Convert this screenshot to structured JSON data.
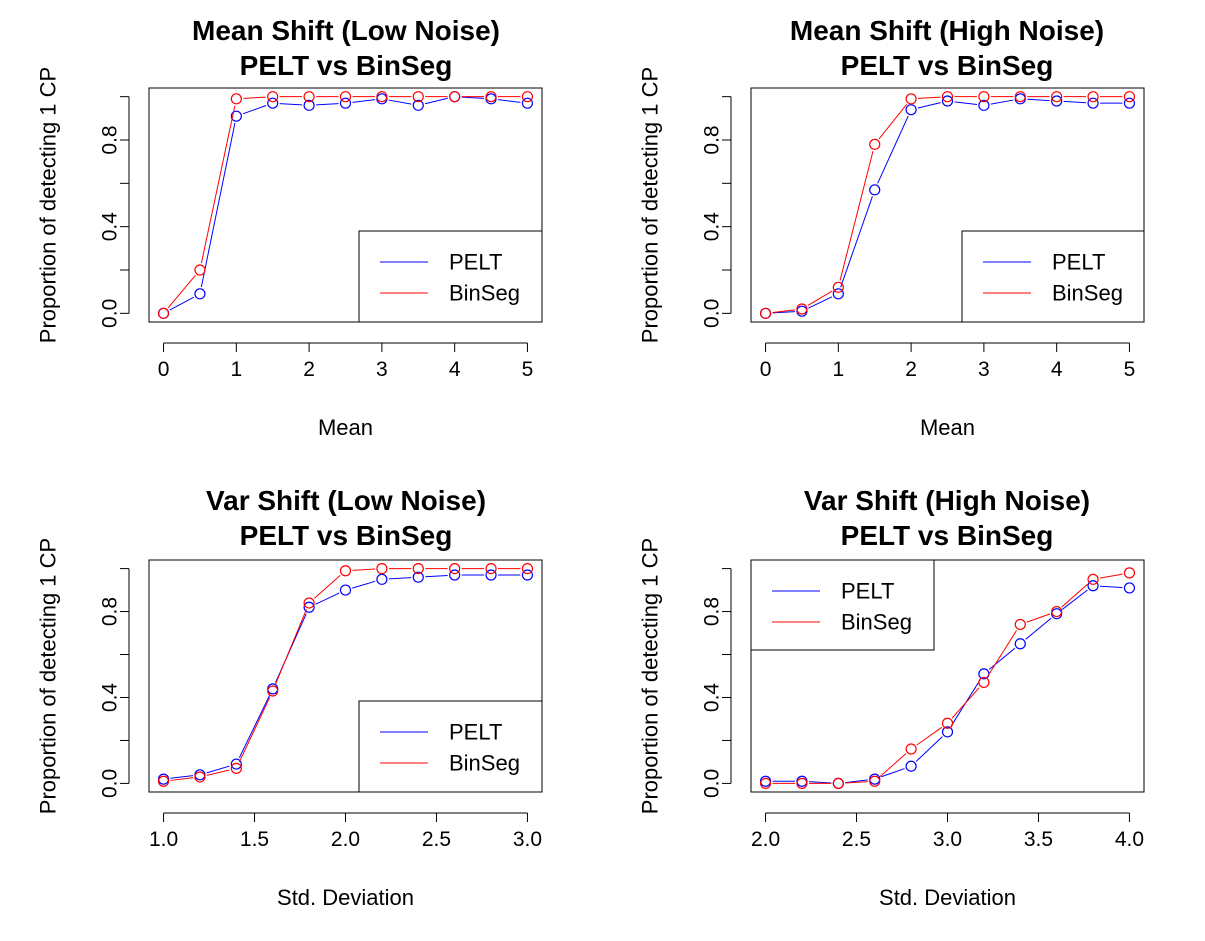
{
  "colors": {
    "PELT": "#0000ff",
    "BinSeg": "#ff0000",
    "axis": "#000000",
    "background": "#ffffff"
  },
  "chart_data": [
    {
      "type": "line",
      "title": "Mean Shift (Low Noise)",
      "subtitle": "PELT vs BinSeg",
      "xlabel": "Mean",
      "ylabel": "Proportion of detecting 1 CP",
      "xlim": [
        0,
        5
      ],
      "ylim": [
        0,
        1
      ],
      "xticks": [
        0,
        1,
        2,
        3,
        4,
        5
      ],
      "xtick_labels": [
        "0",
        "1",
        "2",
        "3",
        "4",
        "5"
      ],
      "yticks": [
        0,
        0.2,
        0.4,
        0.6,
        0.8,
        1.0
      ],
      "ytick_labels": [
        "0.0",
        "",
        "0.4",
        "",
        "0.8",
        ""
      ],
      "legend_position": "bottom-right",
      "grid": false,
      "x": [
        0,
        0.5,
        1,
        1.5,
        2,
        2.5,
        3,
        3.5,
        4,
        4.5,
        5
      ],
      "series": [
        {
          "name": "PELT",
          "values": [
            0.0,
            0.09,
            0.91,
            0.97,
            0.96,
            0.97,
            0.99,
            0.96,
            1.0,
            0.99,
            0.97
          ]
        },
        {
          "name": "BinSeg",
          "values": [
            0.0,
            0.2,
            0.99,
            1.0,
            1.0,
            1.0,
            1.0,
            1.0,
            1.0,
            1.0,
            1.0
          ]
        }
      ]
    },
    {
      "type": "line",
      "title": "Mean Shift (High Noise)",
      "subtitle": "PELT vs BinSeg",
      "xlabel": "Mean",
      "ylabel": "Proportion of detecting 1 CP",
      "xlim": [
        0,
        5
      ],
      "ylim": [
        0,
        1
      ],
      "xticks": [
        0,
        1,
        2,
        3,
        4,
        5
      ],
      "xtick_labels": [
        "0",
        "1",
        "2",
        "3",
        "4",
        "5"
      ],
      "yticks": [
        0,
        0.2,
        0.4,
        0.6,
        0.8,
        1.0
      ],
      "ytick_labels": [
        "0.0",
        "",
        "0.4",
        "",
        "0.8",
        ""
      ],
      "legend_position": "bottom-right",
      "grid": false,
      "x": [
        0,
        0.5,
        1,
        1.5,
        2,
        2.5,
        3,
        3.5,
        4,
        4.5,
        5
      ],
      "series": [
        {
          "name": "PELT",
          "values": [
            0.0,
            0.01,
            0.09,
            0.57,
            0.94,
            0.98,
            0.96,
            0.99,
            0.98,
            0.97,
            0.97
          ]
        },
        {
          "name": "BinSeg",
          "values": [
            0.0,
            0.02,
            0.12,
            0.78,
            0.99,
            1.0,
            1.0,
            1.0,
            1.0,
            1.0,
            1.0
          ]
        }
      ]
    },
    {
      "type": "line",
      "title": "Var Shift (Low Noise)",
      "subtitle": "PELT vs BinSeg",
      "xlabel": "Std. Deviation",
      "ylabel": "Proportion of detecting 1 CP",
      "xlim": [
        1.0,
        3.0
      ],
      "ylim": [
        0,
        1
      ],
      "xticks": [
        1.0,
        1.5,
        2.0,
        2.5,
        3.0
      ],
      "xtick_labels": [
        "1.0",
        "1.5",
        "2.0",
        "2.5",
        "3.0"
      ],
      "yticks": [
        0,
        0.2,
        0.4,
        0.6,
        0.8,
        1.0
      ],
      "ytick_labels": [
        "0.0",
        "",
        "0.4",
        "",
        "0.8",
        ""
      ],
      "legend_position": "bottom-right",
      "grid": false,
      "x": [
        1.0,
        1.2,
        1.4,
        1.6,
        1.8,
        2.0,
        2.2,
        2.4,
        2.6,
        2.8,
        3.0
      ],
      "series": [
        {
          "name": "PELT",
          "values": [
            0.02,
            0.04,
            0.09,
            0.44,
            0.82,
            0.9,
            0.95,
            0.96,
            0.97,
            0.97,
            0.97
          ]
        },
        {
          "name": "BinSeg",
          "values": [
            0.01,
            0.03,
            0.07,
            0.43,
            0.84,
            0.99,
            1.0,
            1.0,
            1.0,
            1.0,
            1.0
          ]
        }
      ]
    },
    {
      "type": "line",
      "title": "Var Shift (High Noise)",
      "subtitle": "PELT vs BinSeg",
      "xlabel": "Std. Deviation",
      "ylabel": "Proportion of detecting 1 CP",
      "xlim": [
        2.0,
        4.0
      ],
      "ylim": [
        0,
        1
      ],
      "xticks": [
        2.0,
        2.5,
        3.0,
        3.5,
        4.0
      ],
      "xtick_labels": [
        "2.0",
        "2.5",
        "3.0",
        "3.5",
        "4.0"
      ],
      "yticks": [
        0,
        0.2,
        0.4,
        0.6,
        0.8,
        1.0
      ],
      "ytick_labels": [
        "0.0",
        "",
        "0.4",
        "",
        "0.8",
        ""
      ],
      "legend_position": "top-left",
      "grid": false,
      "x": [
        2.0,
        2.2,
        2.4,
        2.6,
        2.8,
        3.0,
        3.2,
        3.4,
        3.6,
        3.8,
        4.0
      ],
      "series": [
        {
          "name": "PELT",
          "values": [
            0.01,
            0.01,
            0.0,
            0.02,
            0.08,
            0.24,
            0.51,
            0.65,
            0.79,
            0.92,
            0.91
          ]
        },
        {
          "name": "BinSeg",
          "values": [
            0.0,
            0.0,
            0.0,
            0.01,
            0.16,
            0.28,
            0.47,
            0.74,
            0.8,
            0.95,
            0.98
          ]
        }
      ]
    }
  ]
}
